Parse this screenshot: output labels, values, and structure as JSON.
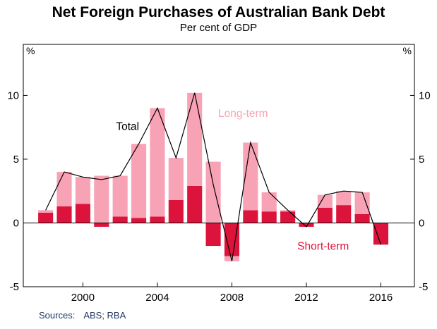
{
  "title": "Net Foreign Purchases of Australian Bank Debt",
  "subtitle": "Per cent of GDP",
  "sources": {
    "label": "Sources:",
    "value": "ABS; RBA"
  },
  "chart_data": {
    "type": "bar",
    "bar_mode": "stacked",
    "overlay_line": "Total",
    "unit": "%",
    "x": [
      1998,
      1999,
      2000,
      2001,
      2002,
      2003,
      2004,
      2005,
      2006,
      2007,
      2008,
      2009,
      2010,
      2011,
      2012,
      2013,
      2014,
      2015,
      2016
    ],
    "series": [
      {
        "name": "Short-term",
        "color": "#dc143c",
        "values": [
          0.8,
          1.3,
          1.5,
          -0.3,
          0.5,
          0.4,
          0.5,
          1.8,
          2.9,
          -1.8,
          -2.6,
          1.0,
          0.9,
          0.9,
          -0.3,
          1.2,
          1.4,
          0.7,
          -1.7
        ]
      },
      {
        "name": "Long-term",
        "color": "#f8a2b6",
        "values": [
          0.2,
          2.7,
          2.1,
          3.7,
          3.2,
          5.8,
          8.5,
          3.3,
          7.3,
          4.8,
          -0.4,
          5.3,
          1.5,
          0.1,
          0.0,
          1.0,
          1.1,
          1.7,
          0.0
        ]
      }
    ],
    "line": {
      "name": "Total",
      "color": "#000000",
      "values": [
        1.0,
        4.0,
        3.6,
        3.4,
        3.7,
        6.2,
        9.0,
        5.1,
        10.2,
        3.0,
        -3.0,
        6.3,
        2.4,
        1.0,
        -0.3,
        2.2,
        2.5,
        2.4,
        -1.7
      ]
    },
    "xlim": [
      1996.8,
      2017.8
    ],
    "ylim": [
      -5,
      14
    ],
    "yticks": [
      -5,
      0,
      5,
      10
    ],
    "ytick_labels": [
      "-5",
      "0",
      "5",
      "10"
    ],
    "xticks": [
      2000,
      2004,
      2008,
      2012,
      2016
    ],
    "xtick_labels": [
      "2000",
      "2004",
      "2008",
      "2012",
      "2016"
    ],
    "axis_unit_left": "%",
    "axis_unit_right": "%",
    "grid": false,
    "legend_position": "in-plot annotations",
    "annotations": [
      {
        "text": "Total",
        "x": 2002.4,
        "y": 7.3,
        "color": "#000000"
      },
      {
        "text": "Long-term",
        "x": 2008.6,
        "y": 8.3,
        "color": "#f8a2b6"
      },
      {
        "text": "Short-term",
        "x": 2012.9,
        "y": -2.1,
        "color": "#dc143c"
      }
    ]
  }
}
